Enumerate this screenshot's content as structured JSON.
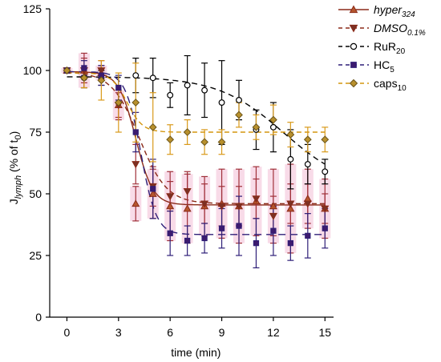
{
  "chart_data": {
    "type": "scatter",
    "xlabel": "time (min)",
    "ylabel": {
      "base": "J",
      "sub": "lymph",
      "rest": " (% of t",
      "sub2": "0",
      "close": ")"
    },
    "xlim": [
      -1,
      15.5
    ],
    "ylim": [
      0,
      125
    ],
    "xticks": [
      0,
      3,
      6,
      9,
      12,
      15
    ],
    "yticks": [
      0,
      25,
      50,
      75,
      100,
      125
    ],
    "grid": false,
    "legend_position": "top-right",
    "series": [
      {
        "key": "hyper",
        "name": "hyper",
        "name_sub": "324",
        "italic": true,
        "marker": "triangle-up",
        "color": "#8b2a18",
        "fill": "#b5562e",
        "dash": "none",
        "x": [
          0,
          1,
          2,
          3,
          4,
          5,
          6,
          7,
          8,
          9,
          10,
          11,
          12,
          13,
          14,
          15
        ],
        "y": [
          100,
          100,
          99,
          86,
          46,
          50,
          45,
          44,
          45,
          46,
          45,
          47,
          45,
          44,
          48,
          44
        ],
        "err": [
          1,
          7,
          3,
          6,
          7,
          10,
          14,
          14,
          12,
          14,
          15,
          14,
          15,
          18,
          12,
          12
        ],
        "fit": {
          "top": 99.5,
          "bottom": 45.5,
          "x50": 4.0,
          "w": 0.5
        }
      },
      {
        "key": "dmso",
        "name": "DMSO",
        "name_sub": "0.1%",
        "italic": true,
        "marker": "triangle-down",
        "color": "#8b2a18",
        "fill": "#7b3124",
        "dash": "6,4",
        "x": [
          0,
          1,
          2,
          3,
          4,
          5,
          6,
          7,
          8,
          9,
          10,
          11,
          12,
          13,
          14,
          15
        ],
        "y": [
          100,
          100,
          100,
          86,
          62,
          53,
          49,
          51,
          46,
          45,
          45,
          48,
          41,
          46,
          46,
          44
        ],
        "err": [
          1,
          5,
          4,
          5,
          8,
          8,
          6,
          8,
          8,
          8,
          8,
          8,
          8,
          8,
          8,
          6
        ],
        "fit": {
          "top": 99.5,
          "bottom": 46,
          "x50": 4.2,
          "w": 0.8
        }
      },
      {
        "key": "rur",
        "name": "RuR",
        "name_sub": "20",
        "italic": false,
        "marker": "circle-open",
        "color": "#000000",
        "fill": "#ffffff",
        "dash": "7,5",
        "x": [
          0,
          1,
          2,
          4,
          5,
          6,
          7,
          8,
          9,
          10,
          11,
          12,
          13,
          14,
          15
        ],
        "y": [
          100,
          97,
          97,
          98,
          97,
          90,
          94,
          92,
          87,
          88,
          76,
          77,
          64,
          62,
          59
        ],
        "err": [
          1,
          4,
          3,
          7,
          8,
          5,
          12,
          11,
          17,
          8,
          8,
          10,
          12,
          8,
          5
        ],
        "fit": {
          "top": 97.5,
          "bottom": 52,
          "x50": 12.6,
          "w": 1.9
        }
      },
      {
        "key": "hc",
        "name": "HC",
        "name_sub": "5",
        "italic": false,
        "marker": "square",
        "color": "#2e1f78",
        "fill": "#3c1a6e",
        "dash": "9,6",
        "x": [
          0,
          1,
          2,
          3,
          4,
          5,
          6,
          7,
          8,
          9,
          10,
          11,
          12,
          13,
          14,
          15
        ],
        "y": [
          100,
          101,
          98,
          93,
          75,
          52,
          34,
          31,
          32,
          36,
          37,
          30,
          35,
          30,
          33,
          36
        ],
        "err": [
          1,
          3,
          4,
          5,
          8,
          12,
          9,
          6,
          6,
          8,
          12,
          10,
          10,
          7,
          9,
          8
        ],
        "fit": {
          "top": 99.5,
          "bottom": 33.5,
          "x50": 4.3,
          "w": 0.45
        }
      },
      {
        "key": "caps",
        "name": "caps",
        "name_sub": "10",
        "italic": false,
        "marker": "diamond",
        "color": "#d4960f",
        "fill": "#b8902d",
        "dash": "6,4",
        "x": [
          0,
          1,
          2,
          3,
          4,
          5,
          6,
          7,
          8,
          9,
          10,
          11,
          12,
          13,
          14,
          15
        ],
        "y": [
          100,
          97,
          96,
          87,
          87,
          77,
          72,
          75,
          71,
          71,
          82,
          77,
          80,
          74,
          72,
          72
        ],
        "err": [
          1,
          4,
          8,
          12,
          16,
          14,
          6,
          5,
          5,
          5,
          5,
          5,
          6,
          5,
          5,
          5
        ],
        "fit": {
          "top": 99,
          "bottom": 75,
          "x50": 3.5,
          "w": 0.45
        }
      }
    ]
  }
}
